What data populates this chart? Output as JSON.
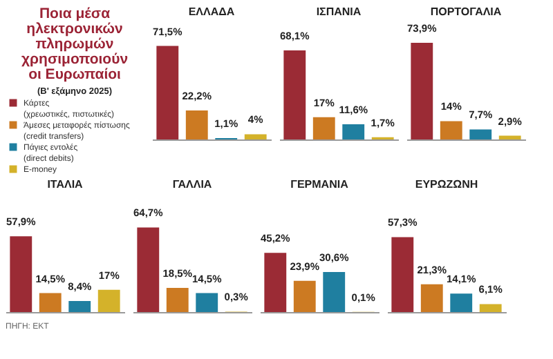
{
  "chart_data": [
    {
      "type": "other",
      "title": "Ποια μέσα ηλεκτρονικών πληρωμών χρησιμοποιούν οι Ευρωπαίοι",
      "subtitle": "(Β' εξάμηνο 2025)"
    },
    {
      "type": "bar",
      "title": "ΕΛΛΑΔΑ",
      "categories": [
        null
      ],
      "legend": "left",
      "series": [
        {
          "name": "Κάρτες (χρεωστικές, πιστωτικές)",
          "color": "#9b2b35",
          "values": [
            71.5
          ],
          "value_labels": [
            "71,5%"
          ]
        },
        {
          "name": "Άμεσες μεταφορές πίστωσης (credit transfers)",
          "color": "#cc7a22",
          "values": [
            22.2
          ],
          "value_labels": [
            "22,2%"
          ]
        },
        {
          "name": "Πάγιες εντολές (direct debits)",
          "color": "#1f7fa0",
          "values": [
            1.1
          ],
          "value_labels": [
            "1,1%"
          ]
        },
        {
          "name": "E-money",
          "color": "#d4b22a",
          "values": [
            4
          ],
          "value_labels": [
            "4%"
          ]
        }
      ]
    },
    {
      "type": "bar",
      "title": "ΙΣΠΑΝΙΑ",
      "categories": [
        null
      ],
      "series": [
        {
          "color": "#9b2b35",
          "values": [
            68.1
          ],
          "value_labels": [
            "68,1%"
          ]
        },
        {
          "color": "#cc7a22",
          "values": [
            17
          ],
          "value_labels": [
            "17%"
          ]
        },
        {
          "color": "#1f7fa0",
          "values": [
            11.6
          ],
          "value_labels": [
            "11,6%"
          ]
        },
        {
          "color": "#d4b22a",
          "values": [
            1.7
          ],
          "value_labels": [
            "1,7%"
          ]
        }
      ]
    },
    {
      "type": "bar",
      "title": "ΠΟΡΤΟΓΑΛΙΑ",
      "categories": [
        null
      ],
      "series": [
        {
          "color": "#9b2b35",
          "values": [
            73.9
          ],
          "value_labels": [
            "73,9%"
          ]
        },
        {
          "color": "#cc7a22",
          "values": [
            14
          ],
          "value_labels": [
            "14%"
          ]
        },
        {
          "color": "#1f7fa0",
          "values": [
            7.7
          ],
          "value_labels": [
            "7,7%"
          ]
        },
        {
          "color": "#d4b22a",
          "values": [
            2.9
          ],
          "value_labels": [
            "2,9%"
          ]
        }
      ]
    },
    {
      "type": "bar",
      "title": "ΙΤΑΛΙΑ",
      "categories": [
        null
      ],
      "annotations": [
        "ΠΗΓΗ: ΕΚΤ"
      ],
      "series": [
        {
          "color": "#9b2b35",
          "values": [
            57.9
          ],
          "value_labels": [
            "57,9%"
          ]
        },
        {
          "color": "#cc7a22",
          "values": [
            14.5
          ],
          "value_labels": [
            "14,5%"
          ]
        },
        {
          "color": "#1f7fa0",
          "values": [
            8.4
          ],
          "value_labels": [
            "8,4%"
          ]
        },
        {
          "color": "#d4b22a",
          "values": [
            17
          ],
          "value_labels": [
            "17%"
          ]
        }
      ]
    },
    {
      "type": "bar",
      "title": "ΓΑΛΛΙΑ",
      "categories": [
        null
      ],
      "series": [
        {
          "color": "#9b2b35",
          "values": [
            64.7
          ],
          "value_labels": [
            "64,7%"
          ]
        },
        {
          "color": "#cc7a22",
          "values": [
            18.5
          ],
          "value_labels": [
            "18,5%"
          ]
        },
        {
          "color": "#1f7fa0",
          "values": [
            14.5
          ],
          "value_labels": [
            "14,5%"
          ]
        },
        {
          "color": "#d4b22a",
          "values": [
            0.3
          ],
          "value_labels": [
            "0,3%"
          ]
        }
      ]
    },
    {
      "type": "bar",
      "title": "ΓΕΡΜΑΝΙΑ",
      "categories": [
        null
      ],
      "series": [
        {
          "color": "#9b2b35",
          "values": [
            45.2
          ],
          "value_labels": [
            "45,2%"
          ]
        },
        {
          "color": "#cc7a22",
          "values": [
            23.9
          ],
          "value_labels": [
            "23,9%"
          ]
        },
        {
          "color": "#1f7fa0",
          "values": [
            30.6
          ],
          "value_labels": [
            "30,6%"
          ]
        },
        {
          "color": "#d4b22a",
          "values": [
            0.1
          ],
          "value_labels": [
            "0,1%"
          ]
        }
      ]
    },
    {
      "type": "bar",
      "title": "ΕΥΡΩΖΩΝΗ",
      "categories": [
        null
      ],
      "series": [
        {
          "color": "#9b2b35",
          "values": [
            57.3
          ],
          "value_labels": [
            "57,3%"
          ]
        },
        {
          "color": "#cc7a22",
          "values": [
            21.3
          ],
          "value_labels": [
            "21,3%"
          ]
        },
        {
          "color": "#1f7fa0",
          "values": [
            14.1
          ],
          "value_labels": [
            "14,1%"
          ]
        },
        {
          "color": "#d4b22a",
          "values": [
            6.1
          ],
          "value_labels": [
            "6,1%"
          ]
        }
      ]
    }
  ]
}
